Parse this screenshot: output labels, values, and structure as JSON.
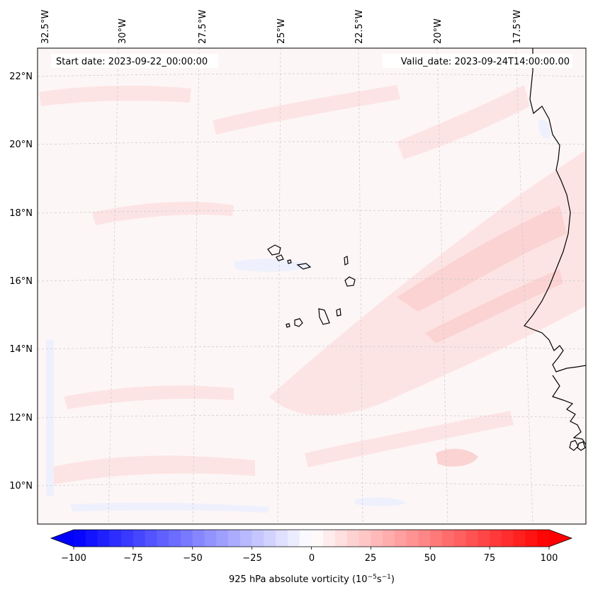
{
  "map": {
    "start_date_label": "Start date: 2023-09-22_00:00:00",
    "valid_date_label": "Valid_date: 2023-09-24T14:00:00.00",
    "lon_labels": [
      "32.5°W",
      "30°W",
      "27.5°W",
      "25°W",
      "22.5°W",
      "20°W",
      "17.5°W"
    ],
    "lat_labels": [
      "22°N",
      "20°N",
      "18°N",
      "16°N",
      "14°N",
      "12°N",
      "10°N"
    ],
    "field_colors": {
      "background": "#fdf6f6",
      "light_red": "#fde4e4",
      "mid_red": "#fbd3d3",
      "light_blue": "#eef0fd"
    },
    "coastline_color": "#000000"
  },
  "colorbar": {
    "tick_labels": [
      "−100",
      "−75",
      "−50",
      "−25",
      "0",
      "25",
      "50",
      "75",
      "100"
    ],
    "label_prefix": "925 hPa absolute vorticity (10",
    "label_exp1": "−5",
    "label_mid": "s",
    "label_exp2": "−1",
    "label_suffix": ")",
    "colormap": "bwr",
    "range": [
      -100,
      100
    ],
    "levels_step": 5
  }
}
